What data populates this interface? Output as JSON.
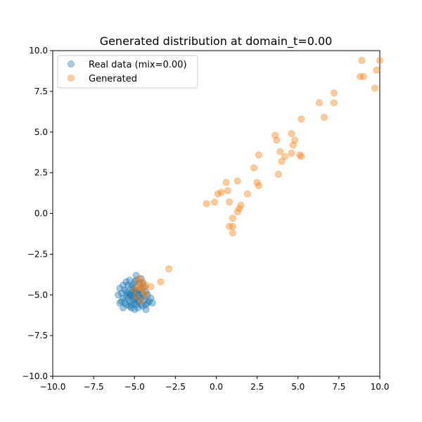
{
  "chart_data": {
    "type": "scatter",
    "title": "Generated distribution at domain_t=0.00",
    "xlabel": "",
    "ylabel": "",
    "xlim": [
      -10,
      10
    ],
    "ylim": [
      -10,
      10
    ],
    "x_ticks": [
      -10,
      -7.5,
      -5,
      -2.5,
      0,
      2.5,
      5,
      7.5,
      10
    ],
    "y_ticks": [
      -10,
      -7.5,
      -5,
      -2.5,
      0,
      2.5,
      5,
      7.5,
      10
    ],
    "x_tick_labels": [
      "−10.0",
      "−7.5",
      "−5.0",
      "−2.5",
      "0.0",
      "2.5",
      "5.0",
      "7.5",
      "10.0"
    ],
    "y_tick_labels": [
      "−10.0",
      "−7.5",
      "−5.0",
      "−2.5",
      "0.0",
      "2.5",
      "5.0",
      "7.5",
      "10.0"
    ],
    "grid": false,
    "legend_position": "upper-left",
    "series": [
      {
        "name": "Real data (mix=0.00)",
        "color": "#1f77b4",
        "points": [
          [
            -5.2,
            -5.0
          ],
          [
            -4.9,
            -4.8
          ],
          [
            -5.1,
            -5.3
          ],
          [
            -4.8,
            -5.1
          ],
          [
            -5.0,
            -4.6
          ],
          [
            -5.4,
            -4.9
          ],
          [
            -4.6,
            -5.2
          ],
          [
            -5.3,
            -5.4
          ],
          [
            -4.7,
            -4.7
          ],
          [
            -5.0,
            -5.5
          ],
          [
            -5.5,
            -5.1
          ],
          [
            -4.5,
            -4.9
          ],
          [
            -5.2,
            -4.5
          ],
          [
            -4.9,
            -5.6
          ],
          [
            -5.6,
            -4.7
          ],
          [
            -4.4,
            -5.3
          ],
          [
            -5.1,
            -4.4
          ],
          [
            -5.3,
            -5.7
          ],
          [
            -4.6,
            -5.6
          ],
          [
            -5.7,
            -5.2
          ],
          [
            -4.3,
            -4.8
          ],
          [
            -5.0,
            -4.2
          ],
          [
            -5.4,
            -4.4
          ],
          [
            -4.8,
            -5.8
          ],
          [
            -5.8,
            -4.9
          ],
          [
            -4.2,
            -5.0
          ],
          [
            -5.5,
            -5.6
          ],
          [
            -4.7,
            -4.3
          ],
          [
            -5.2,
            -5.8
          ],
          [
            -4.4,
            -4.5
          ],
          [
            -5.9,
            -4.6
          ],
          [
            -4.1,
            -5.4
          ],
          [
            -5.6,
            -5.5
          ],
          [
            -4.9,
            -4.1
          ],
          [
            -5.0,
            -5.9
          ],
          [
            -4.5,
            -5.7
          ],
          [
            -5.7,
            -4.4
          ],
          [
            -4.3,
            -5.6
          ],
          [
            -5.3,
            -4.1
          ],
          [
            -4.6,
            -4.0
          ],
          [
            -5.1,
            -5.1
          ],
          [
            -4.8,
            -4.9
          ],
          [
            -5.4,
            -5.2
          ],
          [
            -4.7,
            -5.4
          ],
          [
            -5.0,
            -4.8
          ],
          [
            -5.2,
            -5.6
          ],
          [
            -4.9,
            -5.2
          ],
          [
            -5.5,
            -4.8
          ],
          [
            -4.6,
            -4.6
          ],
          [
            -5.3,
            -5.0
          ],
          [
            -4.4,
            -5.1
          ],
          [
            -5.0,
            -5.2
          ],
          [
            -5.8,
            -5.4
          ],
          [
            -4.2,
            -5.5
          ],
          [
            -5.1,
            -4.7
          ],
          [
            -4.7,
            -5.0
          ],
          [
            -4.0,
            -5.2
          ],
          [
            -6.0,
            -5.0
          ],
          [
            -5.9,
            -5.5
          ],
          [
            -4.9,
            -3.8
          ],
          [
            -3.9,
            -5.5
          ],
          [
            -5.5,
            -4.2
          ],
          [
            -4.5,
            -4.3
          ],
          [
            -5.7,
            -5.8
          ],
          [
            -4.3,
            -5.9
          ],
          [
            -5.2,
            -4.9
          ],
          [
            -4.8,
            -5.4
          ],
          [
            -5.0,
            -5.0
          ]
        ]
      },
      {
        "name": "Generated",
        "color": "#ff7f0e",
        "points": [
          [
            10.0,
            9.4
          ],
          [
            8.9,
            9.4
          ],
          [
            9.8,
            8.8
          ],
          [
            8.8,
            8.4
          ],
          [
            9.0,
            8.4
          ],
          [
            9.7,
            7.7
          ],
          [
            7.2,
            7.4
          ],
          [
            7.2,
            6.8
          ],
          [
            6.3,
            6.8
          ],
          [
            6.6,
            5.9
          ],
          [
            5.2,
            5.8
          ],
          [
            4.6,
            4.9
          ],
          [
            3.6,
            4.8
          ],
          [
            3.7,
            4.5
          ],
          [
            4.8,
            4.5
          ],
          [
            4.7,
            4.2
          ],
          [
            3.9,
            3.8
          ],
          [
            4.6,
            3.7
          ],
          [
            5.1,
            3.6
          ],
          [
            5.2,
            3.5
          ],
          [
            2.6,
            3.6
          ],
          [
            4.2,
            3.5
          ],
          [
            4.0,
            3.2
          ],
          [
            2.3,
            2.8
          ],
          [
            3.8,
            2.4
          ],
          [
            1.3,
            2.0
          ],
          [
            0.6,
            1.9
          ],
          [
            2.5,
            1.9
          ],
          [
            2.6,
            1.7
          ],
          [
            0.7,
            1.4
          ],
          [
            0.3,
            1.3
          ],
          [
            0.1,
            1.2
          ],
          [
            1.9,
            1.2
          ],
          [
            -0.1,
            0.7
          ],
          [
            -0.6,
            0.6
          ],
          [
            0.8,
            0.7
          ],
          [
            1.5,
            0.5
          ],
          [
            1.4,
            0.3
          ],
          [
            1.3,
            0.1
          ],
          [
            1.0,
            -0.3
          ],
          [
            0.8,
            -0.8
          ],
          [
            1.0,
            -0.8
          ],
          [
            1.0,
            -1.2
          ],
          [
            -2.9,
            -3.4
          ],
          [
            -3.4,
            -4.2
          ],
          [
            -4.0,
            -4.5
          ],
          [
            -4.3,
            -4.4
          ],
          [
            -4.7,
            -4.0
          ],
          [
            -4.5,
            -4.2
          ],
          [
            -4.8,
            -4.5
          ],
          [
            -4.6,
            -4.6
          ],
          [
            -5.0,
            -4.7
          ],
          [
            -4.4,
            -4.8
          ],
          [
            -4.3,
            -5.0
          ],
          [
            -4.9,
            -5.1
          ],
          [
            -4.6,
            -5.4
          ],
          [
            -4.8,
            -4.2
          ],
          [
            -4.5,
            -4.5
          ]
        ]
      }
    ]
  }
}
